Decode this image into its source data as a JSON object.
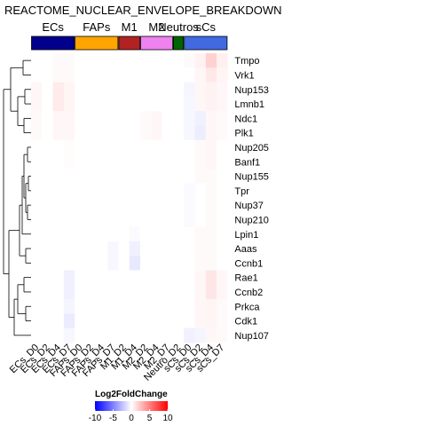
{
  "chart_data": {
    "type": "heatmap",
    "title": "REACTOME_NUCLEAR_ENVELOPE_BREAKDOWN",
    "columns": [
      "ECs_D0",
      "ECs_D2",
      "ECs_D4",
      "ECs_D7",
      "FAPs_D0",
      "FAPs_D2",
      "FAPs_D4",
      "FAPs_D7",
      "M1_D2",
      "M1_D4",
      "M2_D2",
      "M2_D4",
      "M2_D7",
      "Neutro_D2",
      "sCs_D0",
      "sCs_D2",
      "sCs_D4",
      "sCs_D7"
    ],
    "rows": [
      "Tmpo",
      "Vrk1",
      "Nup153",
      "Lmnb1",
      "Ndc1",
      "Plk1",
      "Nup205",
      "Banf1",
      "Nup155",
      "Tpr",
      "Nup37",
      "Nup210",
      "Lpin1",
      "Aaas",
      "Ccnb1",
      "Rae1",
      "Ccnb2",
      "Prkca",
      "Cdk1",
      "Nup107"
    ],
    "groups": [
      {
        "name": "ECs",
        "span": 4,
        "color": "#00008b"
      },
      {
        "name": "FAPs",
        "span": 4,
        "color": "#ffa500"
      },
      {
        "name": "M1",
        "span": 2,
        "color": "#b22222"
      },
      {
        "name": "M2",
        "span": 3,
        "color": "#ee82ee"
      },
      {
        "name": "Neutros",
        "span": 1,
        "color": "#006400"
      },
      {
        "name": "sCs",
        "span": 4,
        "color": "#4169e1"
      }
    ],
    "values": [
      [
        0,
        0,
        0.2,
        0.2,
        0,
        0,
        0,
        0,
        0,
        0,
        0,
        0,
        0,
        0,
        0.2,
        0.5,
        1.8,
        0.6
      ],
      [
        0,
        0,
        0.2,
        0.2,
        0,
        0,
        0,
        0,
        0,
        0,
        0,
        0,
        0,
        0,
        0,
        0.3,
        0.9,
        0.4
      ],
      [
        0.3,
        0,
        0.8,
        0.4,
        0,
        0,
        0,
        0,
        0,
        0,
        0,
        0,
        0,
        0,
        -0.4,
        0.3,
        0.5,
        0.3
      ],
      [
        0.3,
        0,
        0.8,
        0.4,
        0,
        0,
        0,
        0,
        0,
        0,
        0,
        0,
        0,
        0,
        -0.3,
        0.3,
        0.5,
        0.3
      ],
      [
        0.2,
        0,
        0.3,
        0.3,
        0,
        0,
        0,
        0,
        0,
        0,
        0.2,
        0.3,
        0,
        0,
        -0.3,
        -0.6,
        0.3,
        0.2
      ],
      [
        0.2,
        0,
        0.3,
        0.3,
        0,
        0,
        0,
        0,
        0,
        0,
        0.2,
        0.3,
        0,
        0,
        -0.3,
        -0.7,
        0.3,
        0.2
      ],
      [
        0,
        0,
        0,
        0.1,
        0,
        0,
        0,
        0,
        0,
        0,
        0,
        0,
        0,
        0,
        0,
        0.2,
        0.3,
        0
      ],
      [
        0,
        0,
        0,
        0.1,
        0,
        0,
        0,
        0,
        0,
        0,
        0,
        0,
        0,
        0,
        0,
        0.2,
        0.3,
        0
      ],
      [
        0,
        0,
        0,
        0,
        0,
        0,
        0,
        0,
        0,
        0,
        0,
        0,
        0,
        0,
        0,
        0.2,
        0.2,
        0
      ],
      [
        0,
        0,
        0,
        0,
        0,
        0,
        0,
        0,
        0,
        0,
        0,
        0,
        0,
        0,
        -0.2,
        0,
        0.2,
        0
      ],
      [
        0,
        0,
        0,
        0,
        0,
        0,
        0,
        0,
        0,
        0,
        0,
        0,
        0,
        0,
        -0.2,
        0,
        0.2,
        0
      ],
      [
        0,
        0,
        0,
        0,
        0,
        0,
        0,
        0,
        0,
        0,
        0,
        0,
        0,
        0,
        -0.2,
        0,
        0.2,
        0
      ],
      [
        0,
        0,
        0,
        0,
        0,
        0,
        0,
        0,
        0,
        -0.2,
        0,
        0,
        0,
        0,
        0,
        0.2,
        0.2,
        0
      ],
      [
        0,
        0,
        0,
        0,
        0,
        0,
        0,
        -0.3,
        0,
        -0.6,
        0,
        0,
        0,
        0,
        0,
        0.2,
        0.2,
        0
      ],
      [
        0,
        0,
        0,
        0,
        0,
        0,
        0,
        -0.3,
        0,
        -0.9,
        0,
        0,
        0,
        0,
        0,
        0.2,
        0.2,
        0
      ],
      [
        0,
        0,
        0,
        -0.6,
        0,
        0,
        0,
        0,
        0,
        0,
        0,
        0,
        0,
        0,
        0,
        0.3,
        1.0,
        0.3
      ],
      [
        0,
        0,
        0,
        -0.6,
        0,
        0,
        0,
        0,
        0,
        0,
        0,
        0,
        0,
        0,
        0,
        0.3,
        1.0,
        0.3
      ],
      [
        0,
        0,
        0,
        -0.4,
        0,
        0,
        0,
        0,
        0,
        0,
        0,
        0,
        0,
        0,
        0,
        0.3,
        0.4,
        0.2
      ],
      [
        0,
        0,
        0,
        -0.8,
        0,
        0,
        0,
        0,
        0,
        0,
        0,
        0,
        0,
        0,
        0,
        0.3,
        0.4,
        0.2
      ],
      [
        0,
        0,
        0,
        -0.3,
        0,
        0,
        0,
        0,
        0,
        0,
        0,
        0,
        0,
        0,
        -0.6,
        -0.4,
        0.3,
        0.2
      ]
    ],
    "legend": {
      "title": "Log2FoldChange",
      "ticks": [
        -10,
        -5,
        0,
        5,
        10
      ],
      "colors": {
        "low": "#0000ff",
        "mid": "#ffffff",
        "high": "#ff0000"
      },
      "range": [
        -10,
        10
      ],
      "placement": "bottom-left"
    },
    "row_dendrogram": true,
    "grid": false
  }
}
